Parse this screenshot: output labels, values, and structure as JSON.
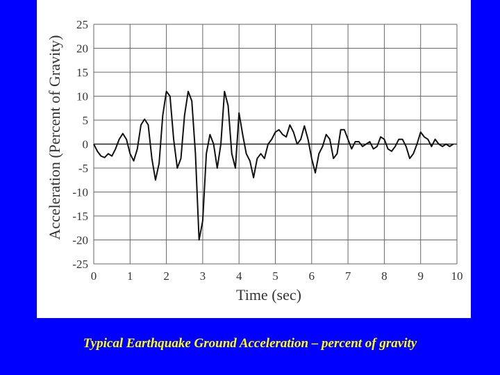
{
  "chart_data": {
    "type": "line",
    "caption": "Typical Earthquake Ground Acceleration – percent of gravity",
    "x_label": "Time (sec)",
    "y_label": "Acceleration (Percent of Gravity)",
    "x": [
      0,
      0.1,
      0.2,
      0.3,
      0.4,
      0.5,
      0.6,
      0.7,
      0.8,
      0.9,
      1,
      1.1,
      1.2,
      1.3,
      1.4,
      1.5,
      1.6,
      1.7,
      1.8,
      1.9,
      2,
      2.1,
      2.2,
      2.3,
      2.4,
      2.5,
      2.6,
      2.7,
      2.8,
      2.9,
      3,
      3.1,
      3.2,
      3.3,
      3.4,
      3.5,
      3.6,
      3.7,
      3.8,
      3.9,
      4,
      4.1,
      4.2,
      4.3,
      4.4,
      4.5,
      4.6,
      4.7,
      4.8,
      4.9,
      5,
      5.1,
      5.2,
      5.3,
      5.4,
      5.5,
      5.6,
      5.7,
      5.8,
      5.9,
      6,
      6.1,
      6.2,
      6.3,
      6.4,
      6.5,
      6.6,
      6.7,
      6.8,
      6.9,
      7,
      7.1,
      7.2,
      7.3,
      7.4,
      7.5,
      7.6,
      7.7,
      7.8,
      7.9,
      8,
      8.1,
      8.2,
      8.3,
      8.4,
      8.5,
      8.6,
      8.7,
      8.8,
      8.9,
      9,
      9.1,
      9.2,
      9.3,
      9.4,
      9.5,
      9.6,
      9.7,
      9.8,
      9.9
    ],
    "series": [
      {
        "color": "#111111",
        "values": [
          0,
          -1.5,
          -2.5,
          -2.8,
          -2,
          -2.5,
          -1,
          1,
          2.2,
          1,
          -2,
          -3.5,
          -1,
          4,
          5.2,
          4,
          -3,
          -7.5,
          -4,
          6,
          11,
          10,
          1,
          -5,
          -3,
          6,
          11,
          9,
          -2,
          -20,
          -16,
          -2,
          2,
          0,
          -5,
          0,
          11,
          8,
          -2,
          -5,
          6.5,
          2,
          -2,
          -3.5,
          -7,
          -3,
          -2,
          -3,
          0,
          1,
          2.5,
          3,
          2,
          1.5,
          4,
          2.5,
          0,
          1,
          3.8,
          1,
          -3,
          -6,
          -2,
          -0.5,
          2,
          1,
          -3,
          -2,
          3,
          3,
          1,
          -1,
          0.5,
          0.5,
          -0.5,
          0,
          0.5,
          -1,
          -0.5,
          1.5,
          1,
          -1,
          -1.5,
          -0.5,
          1,
          1,
          -0.5,
          -3,
          -2,
          0,
          2.5,
          1.5,
          1,
          -0.5,
          1,
          0,
          -0.5,
          0,
          -0.5,
          0
        ]
      }
    ],
    "xlim": [
      0,
      10
    ],
    "xticks": [
      0,
      1,
      2,
      3,
      4,
      5,
      6,
      7,
      8,
      9,
      10
    ],
    "ylim": [
      -25,
      25
    ],
    "yticks": [
      25,
      20,
      15,
      10,
      5,
      0,
      -5,
      -10,
      -15,
      -20,
      -25
    ],
    "grid": true
  }
}
